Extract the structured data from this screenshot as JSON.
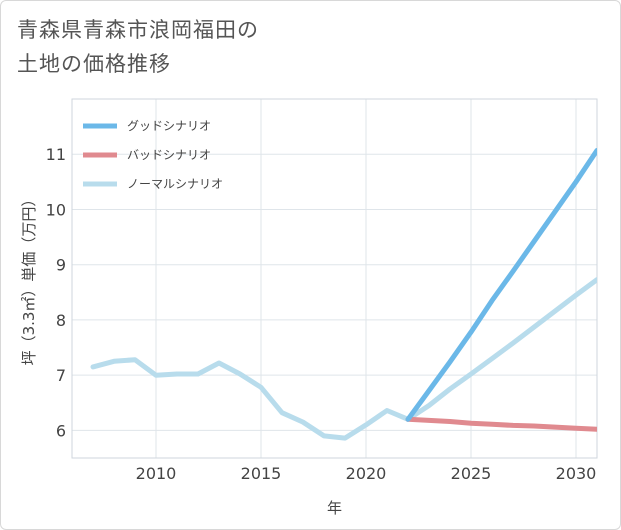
{
  "title": {
    "line1": "青森県青森市浪岡福田の",
    "line2": "土地の価格推移"
  },
  "chart_data": {
    "type": "line",
    "xlabel": "年",
    "ylabel": "坪（3.3㎡）単価（万円）",
    "xlim": [
      2006,
      2031
    ],
    "ylim": [
      5.5,
      12
    ],
    "xticks": [
      2010,
      2015,
      2020,
      2025,
      2030
    ],
    "yticks": [
      6,
      7,
      8,
      9,
      10,
      11
    ],
    "grid": true,
    "legend_position": "top-left",
    "series": [
      {
        "name": "グッドシナリオ",
        "color": "#6bb8e8",
        "x": [
          2022,
          2023,
          2024,
          2025,
          2026,
          2027,
          2028,
          2029,
          2030,
          2031
        ],
        "y": [
          6.2,
          6.72,
          7.24,
          7.78,
          8.35,
          8.88,
          9.42,
          9.96,
          10.5,
          11.07
        ]
      },
      {
        "name": "バッドシナリオ",
        "color": "#e08a8f",
        "x": [
          2022,
          2023,
          2024,
          2025,
          2026,
          2027,
          2028,
          2029,
          2030,
          2031
        ],
        "y": [
          6.2,
          6.18,
          6.16,
          6.13,
          6.11,
          6.09,
          6.08,
          6.06,
          6.04,
          6.02
        ]
      },
      {
        "name": "ノーマルシナリオ",
        "color": "#b8dcec",
        "x": [
          2007,
          2008,
          2009,
          2010,
          2011,
          2012,
          2013,
          2014,
          2015,
          2016,
          2017,
          2018,
          2019,
          2020,
          2021,
          2022,
          2023,
          2024,
          2025,
          2026,
          2027,
          2028,
          2029,
          2030,
          2031
        ],
        "y": [
          7.15,
          7.25,
          7.28,
          7.0,
          7.02,
          7.02,
          7.22,
          7.02,
          6.78,
          6.32,
          6.15,
          5.9,
          5.86,
          6.1,
          6.36,
          6.2,
          6.45,
          6.75,
          7.02,
          7.3,
          7.58,
          7.87,
          8.16,
          8.45,
          8.73
        ]
      }
    ]
  }
}
